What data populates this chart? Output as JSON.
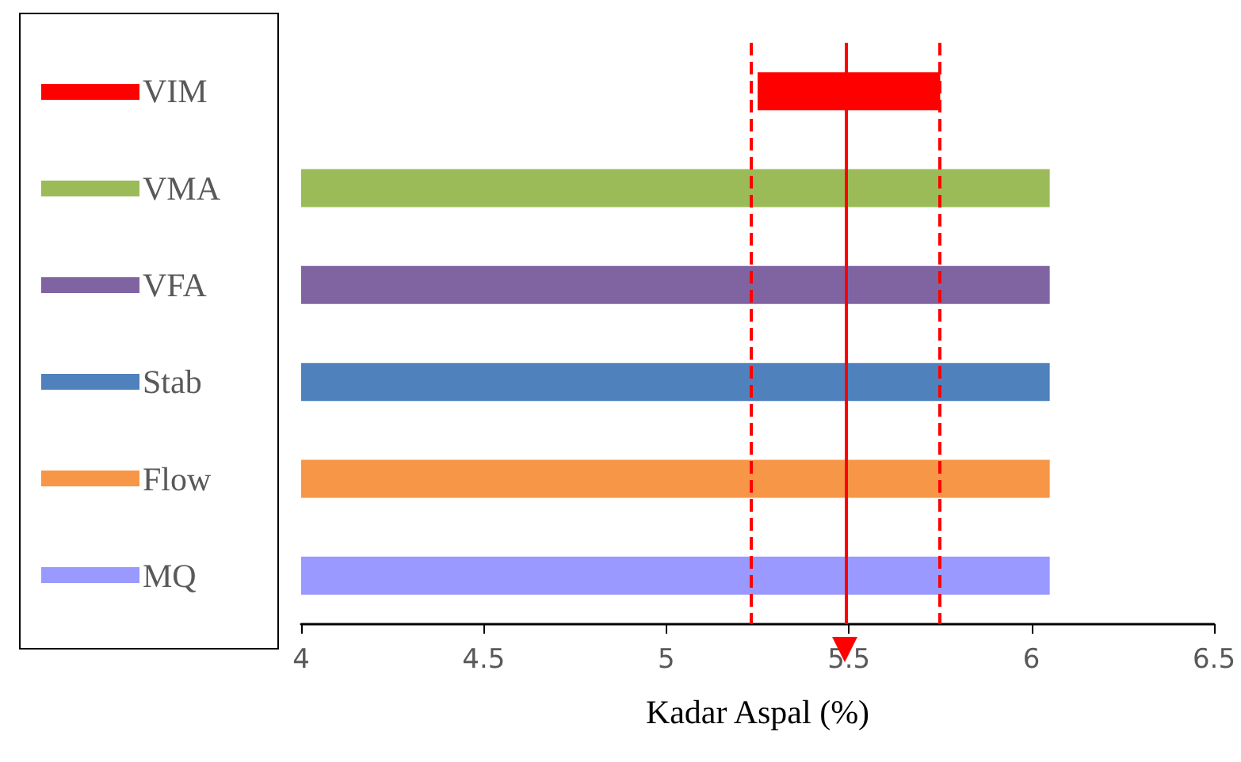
{
  "chart_data": {
    "type": "bar",
    "orientation": "horizontal",
    "categories": [
      "VIM",
      "VMA",
      "VFA",
      "Stab",
      "Flow",
      "MQ"
    ],
    "values": [
      0.5,
      2.05,
      2.05,
      2.05,
      2.05,
      2.05
    ],
    "base": [
      5.25,
      4,
      4,
      4,
      4,
      4
    ],
    "colors": [
      "#ff0000",
      "#9bbb59",
      "#8064a2",
      "#4f81bd",
      "#f79646",
      "#9999ff"
    ],
    "xlabel": "Kadar Aspal (%)",
    "xlim": [
      4,
      6.5
    ],
    "xticks": [
      4,
      4.5,
      5,
      5.5,
      6,
      6.5
    ],
    "ref_lines": [
      {
        "axis": "x",
        "value": 5.23,
        "color": "#ff0000",
        "line_style": "dashed"
      },
      {
        "axis": "x",
        "value": 5.49,
        "color": "#ff0000",
        "line_style": "solid"
      },
      {
        "axis": "x",
        "value": 5.75,
        "color": "#ff0000",
        "line_style": "dashed"
      }
    ],
    "grid": false
  }
}
